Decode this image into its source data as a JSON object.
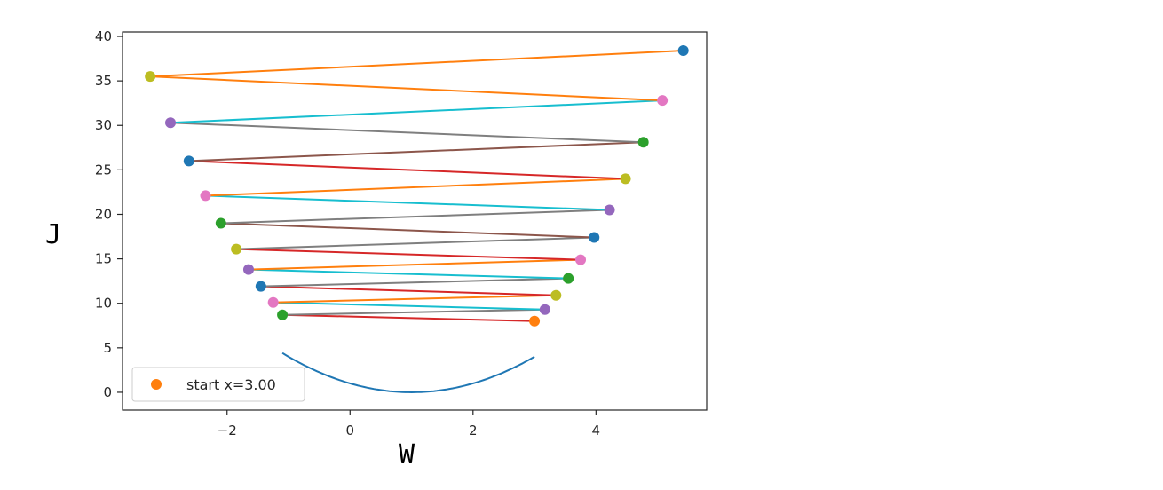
{
  "chart_data": {
    "type": "line",
    "title": "",
    "xlabel": "W",
    "ylabel": "J",
    "xlim": [
      -3.7,
      5.8
    ],
    "ylim": [
      -2,
      40.5
    ],
    "xticks": [
      -2,
      0,
      2,
      4
    ],
    "xtick_labels": [
      "−2",
      "0",
      "2",
      "4"
    ],
    "yticks": [
      0,
      5,
      10,
      15,
      20,
      25,
      30,
      35,
      40
    ],
    "ytick_labels": [
      "0",
      "5",
      "10",
      "15",
      "20",
      "25",
      "30",
      "35",
      "40"
    ],
    "grid": false,
    "legend": {
      "placement": "bottom-left",
      "entries": [
        "start x=3.00"
      ]
    },
    "curve": {
      "description": "J = (w-1)^2 + 0.2 (approximate)",
      "x_range": [
        -1.1,
        3.0
      ],
      "color": "#1f77b4"
    },
    "points": [
      {
        "x": 3.0,
        "y": 8.0,
        "color": "#ff7f0e"
      },
      {
        "x": -1.1,
        "y": 8.7,
        "color": "#2ca02c"
      },
      {
        "x": 3.17,
        "y": 9.3,
        "color": "#9467bd"
      },
      {
        "x": -1.25,
        "y": 10.1,
        "color": "#e377c2"
      },
      {
        "x": 3.35,
        "y": 10.9,
        "color": "#bcbd22"
      },
      {
        "x": -1.45,
        "y": 11.9,
        "color": "#1f77b4"
      },
      {
        "x": 3.55,
        "y": 12.8,
        "color": "#2ca02c"
      },
      {
        "x": -1.65,
        "y": 13.8,
        "color": "#9467bd"
      },
      {
        "x": 3.75,
        "y": 14.9,
        "color": "#e377c2"
      },
      {
        "x": -1.85,
        "y": 16.1,
        "color": "#bcbd22"
      },
      {
        "x": 3.97,
        "y": 17.4,
        "color": "#1f77b4"
      },
      {
        "x": -2.1,
        "y": 19.0,
        "color": "#2ca02c"
      },
      {
        "x": 4.22,
        "y": 20.5,
        "color": "#9467bd"
      },
      {
        "x": -2.35,
        "y": 22.1,
        "color": "#e377c2"
      },
      {
        "x": 4.48,
        "y": 24.0,
        "color": "#bcbd22"
      },
      {
        "x": -2.62,
        "y": 26.0,
        "color": "#1f77b4"
      },
      {
        "x": 4.77,
        "y": 28.1,
        "color": "#2ca02c"
      },
      {
        "x": -2.92,
        "y": 30.3,
        "color": "#9467bd"
      },
      {
        "x": 5.08,
        "y": 32.8,
        "color": "#e377c2"
      },
      {
        "x": -3.25,
        "y": 35.5,
        "color": "#bcbd22"
      },
      {
        "x": 5.42,
        "y": 38.4,
        "color": "#1f77b4"
      }
    ],
    "segment_colors": [
      "#d62728",
      "#7f7f7f",
      "#17becf",
      "#ff7f0e",
      "#d62728",
      "#7f7f7f",
      "#17becf",
      "#ff7f0e",
      "#d62728",
      "#7f7f7f",
      "#8c564b",
      "#7f7f7f",
      "#17becf",
      "#ff7f0e",
      "#d62728",
      "#8c564b",
      "#7f7f7f",
      "#17becf",
      "#ff7f0e",
      "#ff7f0e"
    ],
    "legend_marker_color": "#ff7f0e",
    "axis_color": "#262626"
  }
}
